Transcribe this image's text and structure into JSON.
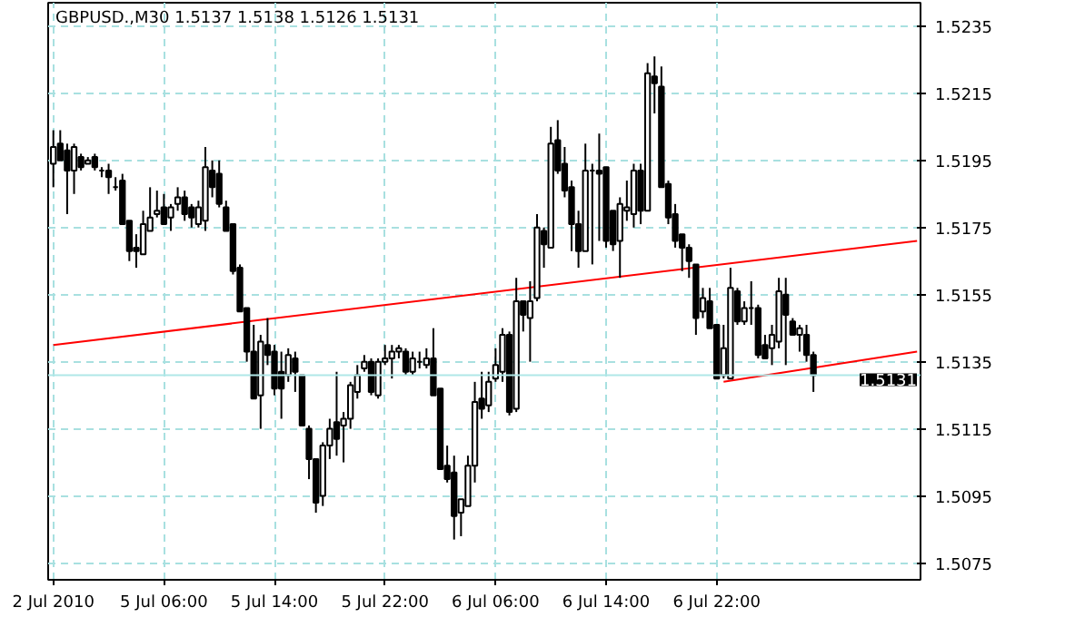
{
  "chart_data": {
    "type": "candlestick",
    "title": "GBPUSD.,M30  1.5137 1.5138 1.5126 1.5131",
    "categories": [
      "2 Jul 2010",
      null,
      null,
      null,
      null,
      null,
      null,
      null,
      null,
      null,
      null,
      null,
      null,
      null,
      null,
      null,
      "5 Jul 06:00",
      null,
      null,
      null,
      null,
      null,
      null,
      null,
      null,
      null,
      null,
      null,
      null,
      null,
      null,
      null,
      "5 Jul 14:00",
      null,
      null,
      null,
      null,
      null,
      null,
      null,
      null,
      null,
      null,
      null,
      null,
      null,
      null,
      null,
      "5 Jul 22:00",
      null,
      null,
      null,
      null,
      null,
      null,
      null,
      null,
      null,
      null,
      null,
      null,
      null,
      null,
      null,
      "6 Jul 06:00",
      null,
      null,
      null,
      null,
      null,
      null,
      null,
      null,
      null,
      null,
      null,
      null,
      null,
      null,
      null,
      "6 Jul 14:00",
      null,
      null,
      null,
      null,
      null,
      null,
      null,
      null,
      null,
      null,
      null,
      null,
      null,
      null,
      null,
      "6 Jul 22:00",
      null,
      null,
      null,
      null,
      null,
      null,
      null,
      null,
      null,
      null,
      null,
      null,
      null,
      null,
      null,
      null,
      null,
      null,
      null,
      null,
      null,
      null,
      null,
      null,
      null,
      null,
      null,
      null,
      null
    ],
    "ohlc": [
      [
        1.5194,
        1.5204,
        1.5187,
        1.5199
      ],
      [
        1.52,
        1.5204,
        1.5195,
        1.5195
      ],
      [
        1.5198,
        1.52,
        1.5179,
        1.5192
      ],
      [
        1.5192,
        1.52,
        1.5185,
        1.5199
      ],
      [
        1.5196,
        1.5197,
        1.5192,
        1.5193
      ],
      [
        1.5194,
        1.5196,
        1.5194,
        1.5195
      ],
      [
        1.5196,
        1.5197,
        1.5192,
        1.5193
      ],
      [
        1.5192,
        1.5193,
        1.519,
        1.5192
      ],
      [
        1.5192,
        1.5194,
        1.5185,
        1.519
      ],
      [
        1.5187,
        1.519,
        1.5186,
        1.5187
      ],
      [
        1.5189,
        1.5191,
        1.5176,
        1.5176
      ],
      [
        1.5177,
        1.5177,
        1.5165,
        1.5168
      ],
      [
        1.5169,
        1.5173,
        1.5163,
        1.5168
      ],
      [
        1.5167,
        1.518,
        1.5167,
        1.5176
      ],
      [
        1.5174,
        1.5187,
        1.5174,
        1.5178
      ],
      [
        1.5179,
        1.5186,
        1.5178,
        1.518
      ],
      [
        1.5181,
        1.5185,
        1.5176,
        1.5176
      ],
      [
        1.5178,
        1.5182,
        1.5174,
        1.5181
      ],
      [
        1.5182,
        1.5187,
        1.518,
        1.5184
      ],
      [
        1.5184,
        1.5186,
        1.5177,
        1.5179
      ],
      [
        1.5181,
        1.5182,
        1.5175,
        1.5178
      ],
      [
        1.5176,
        1.5183,
        1.5175,
        1.5181
      ],
      [
        1.5177,
        1.5199,
        1.5174,
        1.5193
      ],
      [
        1.5192,
        1.5195,
        1.5184,
        1.5187
      ],
      [
        1.5191,
        1.5195,
        1.5181,
        1.5182
      ],
      [
        1.5181,
        1.5183,
        1.5174,
        1.5174
      ],
      [
        1.5176,
        1.5176,
        1.5161,
        1.5162
      ],
      [
        1.5163,
        1.5164,
        1.515,
        1.515
      ],
      [
        1.5151,
        1.5151,
        1.5135,
        1.5138
      ],
      [
        1.5138,
        1.5146,
        1.5124,
        1.5124
      ],
      [
        1.5125,
        1.5143,
        1.5115,
        1.5141
      ],
      [
        1.514,
        1.5148,
        1.5134,
        1.5137
      ],
      [
        1.5138,
        1.514,
        1.5125,
        1.5127
      ],
      [
        1.5132,
        1.5138,
        1.5118,
        1.5127
      ],
      [
        1.5131,
        1.5139,
        1.5129,
        1.5137
      ],
      [
        1.5136,
        1.5138,
        1.5126,
        1.5132
      ],
      [
        1.5131,
        1.5131,
        1.5116,
        1.5116
      ],
      [
        1.5115,
        1.5116,
        1.51,
        1.5106
      ],
      [
        1.5106,
        1.5106,
        1.509,
        1.5093
      ],
      [
        1.5095,
        1.5111,
        1.5092,
        1.511
      ],
      [
        1.511,
        1.5118,
        1.5106,
        1.5115
      ],
      [
        1.5117,
        1.5132,
        1.5107,
        1.5112
      ],
      [
        1.5116,
        1.512,
        1.5105,
        1.5118
      ],
      [
        1.5118,
        1.5129,
        1.5115,
        1.5128
      ],
      [
        1.5126,
        1.5134,
        1.5124,
        1.5131
      ],
      [
        1.5133,
        1.5137,
        1.5132,
        1.5135
      ],
      [
        1.5135,
        1.5136,
        1.5125,
        1.5126
      ],
      [
        1.5125,
        1.5136,
        1.5124,
        1.5135
      ],
      [
        1.5135,
        1.514,
        1.5134,
        1.5136
      ],
      [
        1.5136,
        1.514,
        1.513,
        1.5138
      ],
      [
        1.5138,
        1.514,
        1.5136,
        1.5139
      ],
      [
        1.5138,
        1.5139,
        1.5131,
        1.5132
      ],
      [
        1.5132,
        1.5138,
        1.5131,
        1.5136
      ],
      [
        1.5135,
        1.5138,
        1.5133,
        1.5135
      ],
      [
        1.5134,
        1.5139,
        1.5133,
        1.5136
      ],
      [
        1.5136,
        1.5145,
        1.5125,
        1.5125
      ],
      [
        1.5127,
        1.5127,
        1.5103,
        1.5103
      ],
      [
        1.5104,
        1.511,
        1.5099,
        1.51
      ],
      [
        1.5102,
        1.5107,
        1.5082,
        1.5089
      ],
      [
        1.509,
        1.5094,
        1.5083,
        1.5094
      ],
      [
        1.5092,
        1.5107,
        1.5092,
        1.5104
      ],
      [
        1.5104,
        1.5129,
        1.5099,
        1.5123
      ],
      [
        1.5124,
        1.5132,
        1.5118,
        1.5121
      ],
      [
        1.5122,
        1.5132,
        1.512,
        1.5129
      ],
      [
        1.513,
        1.5139,
        1.5129,
        1.5134
      ],
      [
        1.5132,
        1.5145,
        1.5129,
        1.5143
      ],
      [
        1.5143,
        1.5144,
        1.5119,
        1.512
      ],
      [
        1.5121,
        1.516,
        1.512,
        1.5153
      ],
      [
        1.5153,
        1.5153,
        1.5144,
        1.5149
      ],
      [
        1.5148,
        1.5159,
        1.5135,
        1.5153
      ],
      [
        1.5154,
        1.5179,
        1.5153,
        1.5175
      ],
      [
        1.5174,
        1.5175,
        1.5163,
        1.517
      ],
      [
        1.5169,
        1.5205,
        1.5169,
        1.52
      ],
      [
        1.5201,
        1.5207,
        1.5191,
        1.5192
      ],
      [
        1.5194,
        1.5199,
        1.5184,
        1.5186
      ],
      [
        1.5187,
        1.5189,
        1.5168,
        1.5176
      ],
      [
        1.5176,
        1.518,
        1.5163,
        1.5168
      ],
      [
        1.5168,
        1.52,
        1.5168,
        1.5192
      ],
      [
        1.5192,
        1.5194,
        1.5164,
        1.5192
      ],
      [
        1.5192,
        1.5203,
        1.5171,
        1.5191
      ],
      [
        1.5193,
        1.5193,
        1.5169,
        1.5171
      ],
      [
        1.518,
        1.518,
        1.5168,
        1.517
      ],
      [
        1.5171,
        1.5184,
        1.516,
        1.5182
      ],
      [
        1.518,
        1.5189,
        1.5177,
        1.5181
      ],
      [
        1.5179,
        1.5194,
        1.5175,
        1.5192
      ],
      [
        1.5192,
        1.5194,
        1.5176,
        1.518
      ],
      [
        1.518,
        1.5224,
        1.518,
        1.5221
      ],
      [
        1.522,
        1.5226,
        1.5209,
        1.5218
      ],
      [
        1.5217,
        1.5223,
        1.5187,
        1.5187
      ],
      [
        1.5188,
        1.5189,
        1.5176,
        1.5178
      ],
      [
        1.5179,
        1.5182,
        1.5169,
        1.5171
      ],
      [
        1.5173,
        1.5173,
        1.5162,
        1.5169
      ],
      [
        1.5169,
        1.517,
        1.516,
        1.5165
      ],
      [
        1.5164,
        1.5164,
        1.5143,
        1.5148
      ],
      [
        1.515,
        1.5157,
        1.5148,
        1.5154
      ],
      [
        1.5153,
        1.5157,
        1.5145,
        1.5145
      ],
      [
        1.5146,
        1.5146,
        1.513,
        1.513
      ],
      [
        1.5131,
        1.5146,
        1.513,
        1.5139
      ],
      [
        1.513,
        1.5163,
        1.513,
        1.5157
      ],
      [
        1.5156,
        1.5157,
        1.5146,
        1.5147
      ],
      [
        1.5147,
        1.5153,
        1.5146,
        1.5151
      ],
      [
        1.5151,
        1.5159,
        1.5146,
        1.5151
      ],
      [
        1.5151,
        1.5152,
        1.5136,
        1.5137
      ],
      [
        1.514,
        1.5143,
        1.5136,
        1.5136
      ],
      [
        1.5139,
        1.5146,
        1.5134,
        1.5143
      ],
      [
        1.5141,
        1.516,
        1.5139,
        1.5156
      ],
      [
        1.5155,
        1.516,
        1.5134,
        1.5149
      ],
      [
        1.5147,
        1.5148,
        1.5143,
        1.5143
      ],
      [
        1.5143,
        1.5146,
        1.5138,
        1.5145
      ],
      [
        1.5143,
        1.5146,
        1.5135,
        1.5137
      ],
      [
        1.5137,
        1.5138,
        1.5126,
        1.5131
      ],
      null,
      null,
      null,
      null,
      null,
      null,
      null,
      null,
      null,
      null,
      null,
      null,
      null,
      null,
      null
    ],
    "series": [
      {
        "type": "line",
        "color": "#ff0000",
        "values": [
          1.514,
          null,
          null,
          null,
          null,
          null,
          null,
          null,
          null,
          null,
          null,
          null,
          null,
          null,
          null,
          null,
          null,
          null,
          null,
          null,
          null,
          null,
          null,
          null,
          null,
          null,
          null,
          null,
          null,
          null,
          null,
          null,
          null,
          null,
          null,
          null,
          null,
          null,
          null,
          null,
          null,
          null,
          null,
          null,
          null,
          null,
          null,
          null,
          null,
          null,
          null,
          null,
          null,
          null,
          null,
          null,
          null,
          null,
          null,
          null,
          null,
          null,
          null,
          null,
          null,
          null,
          null,
          null,
          null,
          null,
          null,
          null,
          null,
          null,
          null,
          null,
          null,
          null,
          null,
          null,
          null,
          null,
          null,
          null,
          null,
          null,
          null,
          null,
          null,
          null,
          null,
          null,
          null,
          null,
          null,
          null,
          null,
          null,
          null,
          null,
          null,
          null,
          null,
          null,
          null,
          null,
          null,
          null,
          null,
          null,
          null,
          null,
          null,
          null,
          null,
          null,
          null,
          null,
          null,
          null,
          null,
          null,
          null,
          null,
          null,
          1.5171
        ]
      },
      {
        "type": "line",
        "color": "#ff0000",
        "values": [
          null,
          null,
          null,
          null,
          null,
          null,
          null,
          null,
          null,
          null,
          null,
          null,
          null,
          null,
          null,
          null,
          null,
          null,
          null,
          null,
          null,
          null,
          null,
          null,
          null,
          null,
          null,
          null,
          null,
          null,
          null,
          null,
          null,
          null,
          null,
          null,
          null,
          null,
          null,
          null,
          null,
          null,
          null,
          null,
          null,
          null,
          null,
          null,
          null,
          null,
          null,
          null,
          null,
          null,
          null,
          null,
          null,
          null,
          null,
          null,
          null,
          null,
          null,
          null,
          null,
          null,
          null,
          null,
          null,
          null,
          null,
          null,
          null,
          null,
          null,
          null,
          null,
          null,
          null,
          null,
          null,
          null,
          null,
          null,
          null,
          null,
          null,
          null,
          null,
          null,
          null,
          null,
          null,
          null,
          null,
          null,
          null,
          1.5129,
          null,
          null,
          null,
          null,
          null,
          null,
          null,
          null,
          null,
          null,
          null,
          null,
          null,
          null,
          null,
          null,
          null,
          null,
          null,
          null,
          null,
          null,
          null,
          null,
          null,
          null,
          null,
          1.5138
        ]
      }
    ],
    "ylim": [
      1.507,
      1.5242
    ],
    "yticks": [
      {
        "value": 1.5075,
        "label": "1.5075"
      },
      {
        "value": 1.5095,
        "label": "1.5095"
      },
      {
        "value": 1.5115,
        "label": "1.5115"
      },
      {
        "value": 1.5135,
        "label": "1.5135"
      },
      {
        "value": 1.5155,
        "label": "1.5155"
      },
      {
        "value": 1.5175,
        "label": "1.5175"
      },
      {
        "value": 1.5195,
        "label": "1.5195"
      },
      {
        "value": 1.5215,
        "label": "1.5215"
      },
      {
        "value": 1.5235,
        "label": "1.5235"
      }
    ],
    "ref_lines": [
      {
        "axis": "y",
        "value": 1.5131,
        "label": "1.5131",
        "color": "#b0e8e8"
      }
    ],
    "grid": true
  }
}
